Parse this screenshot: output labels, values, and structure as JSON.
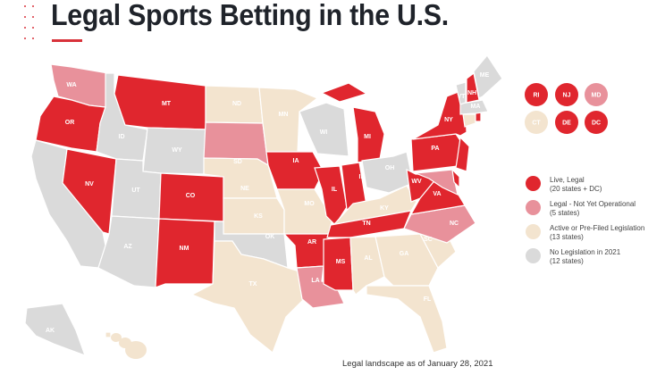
{
  "title": "Legal Sports Betting in the U.S.",
  "footnote": "Legal landscape as of January 28, 2021",
  "colors": {
    "live": "#e0262e",
    "legal_not_operational": "#e8919b",
    "active": "#f3e4cf",
    "none": "#dadada",
    "accent": "#d8323a"
  },
  "legend": [
    {
      "status": "live",
      "line1": "Live, Legal",
      "line2": "(20 states + DC)"
    },
    {
      "status": "legal_not_operational",
      "line1": "Legal - Not Yet Operational",
      "line2": "(5 states)"
    },
    {
      "status": "active",
      "line1": "Active or Pre-Filed Legislation",
      "line2": "(13 states)"
    },
    {
      "status": "none",
      "line1": "No Legislation in 2021",
      "line2": "(12 states)"
    }
  ],
  "states": [
    {
      "code": "WA",
      "status": "legal_not_operational"
    },
    {
      "code": "OR",
      "status": "live"
    },
    {
      "code": "CA",
      "status": "none"
    },
    {
      "code": "NV",
      "status": "live"
    },
    {
      "code": "ID",
      "status": "none"
    },
    {
      "code": "MT",
      "status": "live"
    },
    {
      "code": "WY",
      "status": "none"
    },
    {
      "code": "UT",
      "status": "none"
    },
    {
      "code": "AZ",
      "status": "none"
    },
    {
      "code": "CO",
      "status": "live"
    },
    {
      "code": "NM",
      "status": "live"
    },
    {
      "code": "ND",
      "status": "active"
    },
    {
      "code": "SD",
      "status": "legal_not_operational"
    },
    {
      "code": "NE",
      "status": "active"
    },
    {
      "code": "KS",
      "status": "active"
    },
    {
      "code": "OK",
      "status": "none"
    },
    {
      "code": "TX",
      "status": "active"
    },
    {
      "code": "MN",
      "status": "active"
    },
    {
      "code": "IA",
      "status": "live"
    },
    {
      "code": "MO",
      "status": "active"
    },
    {
      "code": "AR",
      "status": "live"
    },
    {
      "code": "LA",
      "status": "legal_not_operational"
    },
    {
      "code": "WI",
      "status": "none"
    },
    {
      "code": "IL",
      "status": "live"
    },
    {
      "code": "MS",
      "status": "live"
    },
    {
      "code": "MI",
      "status": "live"
    },
    {
      "code": "IN",
      "status": "live"
    },
    {
      "code": "KY",
      "status": "active"
    },
    {
      "code": "TN",
      "status": "live"
    },
    {
      "code": "AL",
      "status": "active"
    },
    {
      "code": "OH",
      "status": "none"
    },
    {
      "code": "GA",
      "status": "active"
    },
    {
      "code": "FL",
      "status": "active"
    },
    {
      "code": "SC",
      "status": "active"
    },
    {
      "code": "NC",
      "status": "legal_not_operational"
    },
    {
      "code": "VA",
      "status": "live"
    },
    {
      "code": "WV",
      "status": "live"
    },
    {
      "code": "PA",
      "status": "live"
    },
    {
      "code": "NY",
      "status": "live"
    },
    {
      "code": "MD",
      "status": "legal_not_operational"
    },
    {
      "code": "DE",
      "status": "live"
    },
    {
      "code": "NJ",
      "status": "live"
    },
    {
      "code": "CT",
      "status": "active"
    },
    {
      "code": "RI",
      "status": "live"
    },
    {
      "code": "MA",
      "status": "none"
    },
    {
      "code": "VT",
      "status": "none"
    },
    {
      "code": "NH",
      "status": "live"
    },
    {
      "code": "ME",
      "status": "none"
    },
    {
      "code": "AK",
      "status": "none"
    },
    {
      "code": "HI",
      "status": "active"
    }
  ],
  "small_state_circles": [
    {
      "code": "RI",
      "status": "live"
    },
    {
      "code": "NJ",
      "status": "live"
    },
    {
      "code": "MD",
      "status": "legal_not_operational"
    },
    {
      "code": "CT",
      "status": "active"
    },
    {
      "code": "DE",
      "status": "live"
    },
    {
      "code": "DC",
      "status": "live"
    }
  ]
}
